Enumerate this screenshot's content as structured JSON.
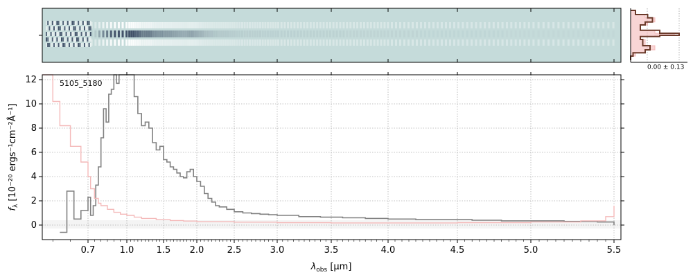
{
  "chart_data": [
    {
      "type": "heatmap",
      "name": "2d-spectrum",
      "colormap": [
        "#ffffff",
        "#c5dbda",
        "#2a3a55"
      ],
      "background": "#c5dbda"
    },
    {
      "type": "line",
      "name": "1d-spectrum",
      "annotation": "5105_5180",
      "xlabel_main": "λ",
      "xlabel_sub": "obs",
      "xlabel_unit": " [μm]",
      "ylabel_main": "f",
      "ylabel_sub": "λ",
      "ylabel_unit": " [10⁻²⁰ ergs⁻¹cm⁻²Å⁻¹]",
      "xlim": [
        0.57,
        5.52
      ],
      "ylim": [
        -1.2,
        12.4
      ],
      "x_axis_scale": "nonlinear",
      "xticks": [
        0.7,
        1.0,
        1.5,
        2.0,
        2.5,
        3.0,
        3.5,
        4.0,
        4.5,
        5.0,
        5.5
      ],
      "xtick_labels": [
        "0.7",
        "1.0",
        "1.5",
        "2.0",
        "2.5",
        "3.0",
        "3.5",
        "4.0",
        "4.5",
        "5.0",
        "5.5"
      ],
      "yticks": [
        0,
        2,
        4,
        6,
        8,
        10,
        12
      ],
      "ytick_labels": [
        "0",
        "2",
        "4",
        "6",
        "8",
        "10",
        "12"
      ],
      "grid": true,
      "series": [
        {
          "color": "#808080",
          "style": "steps",
          "x": [
            0.62,
            0.64,
            0.66,
            0.68,
            0.7,
            0.72,
            0.74,
            0.76,
            0.78,
            0.8,
            0.82,
            0.84,
            0.86,
            0.88,
            0.9,
            0.92,
            0.94,
            0.96,
            0.98,
            1.0,
            1.05,
            1.1,
            1.15,
            1.2,
            1.25,
            1.3,
            1.35,
            1.4,
            1.45,
            1.5,
            1.55,
            1.6,
            1.65,
            1.7,
            1.75,
            1.8,
            1.85,
            1.9,
            1.95,
            2.0,
            2.05,
            2.1,
            2.15,
            2.2,
            2.25,
            2.3,
            2.4,
            2.5,
            2.6,
            2.7,
            2.8,
            2.9,
            3.0,
            3.2,
            3.4,
            3.6,
            3.8,
            4.0,
            4.2,
            4.4,
            4.6,
            4.8,
            5.0,
            5.2,
            5.4,
            5.5
          ],
          "y": [
            -0.6,
            2.8,
            0.5,
            1.2,
            2.3,
            0.8,
            1.6,
            3.3,
            4.8,
            7.2,
            9.6,
            8.5,
            10.8,
            11.2,
            12.4,
            11.7,
            12.4,
            12.4,
            12.4,
            12.4,
            12.4,
            10.6,
            9.2,
            8.2,
            8.5,
            8.0,
            6.8,
            6.2,
            6.5,
            5.4,
            5.2,
            4.8,
            4.6,
            4.3,
            4.0,
            3.9,
            4.4,
            4.6,
            4.0,
            3.6,
            3.2,
            2.6,
            2.2,
            1.9,
            1.6,
            1.5,
            1.3,
            1.1,
            1.0,
            0.95,
            0.9,
            0.85,
            0.8,
            0.7,
            0.65,
            0.6,
            0.55,
            0.5,
            0.45,
            0.45,
            0.4,
            0.35,
            0.35,
            0.3,
            0.25,
            0.0
          ]
        },
        {
          "color": "#f4b9b9",
          "style": "steps",
          "x": [
            0.57,
            0.6,
            0.62,
            0.65,
            0.68,
            0.7,
            0.72,
            0.75,
            0.78,
            0.8,
            0.85,
            0.9,
            0.95,
            1.0,
            1.1,
            1.2,
            1.4,
            1.6,
            1.8,
            2.0,
            2.5,
            3.0,
            3.5,
            4.0,
            4.5,
            5.0,
            5.3,
            5.45,
            5.5
          ],
          "y": [
            12.4,
            10.2,
            8.2,
            6.5,
            5.2,
            4.0,
            3.0,
            2.2,
            1.8,
            1.6,
            1.3,
            1.05,
            0.9,
            0.8,
            0.65,
            0.55,
            0.45,
            0.38,
            0.33,
            0.28,
            0.24,
            0.2,
            0.18,
            0.18,
            0.2,
            0.25,
            0.35,
            0.7,
            1.6
          ]
        }
      ]
    },
    {
      "type": "line",
      "name": "profile-histogram",
      "annotation": "0.00 ± 0.13",
      "series": [
        {
          "color": "#6b3a2a",
          "x": [
            0.0,
            0.05,
            0.3,
            0.4,
            0.25,
            0.2,
            0.6,
            1.0,
            0.6,
            0.2,
            0.3,
            0.45,
            0.35,
            0.1,
            0.0
          ],
          "y": [
            -0.6,
            -0.5,
            -0.42,
            -0.35,
            -0.25,
            -0.1,
            -0.03,
            0.0,
            0.05,
            0.12,
            0.25,
            0.32,
            0.42,
            0.5,
            0.6
          ]
        },
        {
          "color": "#f4b9b9",
          "x": [
            0.0,
            0.1,
            0.3,
            0.5,
            0.3,
            0.2,
            0.5,
            0.9,
            0.5,
            0.2,
            0.35,
            0.5,
            0.3,
            0.1,
            0.0
          ],
          "y": [
            -0.6,
            -0.5,
            -0.42,
            -0.35,
            -0.25,
            -0.1,
            -0.03,
            0.0,
            0.05,
            0.12,
            0.25,
            0.32,
            0.42,
            0.5,
            0.6
          ]
        }
      ]
    }
  ]
}
